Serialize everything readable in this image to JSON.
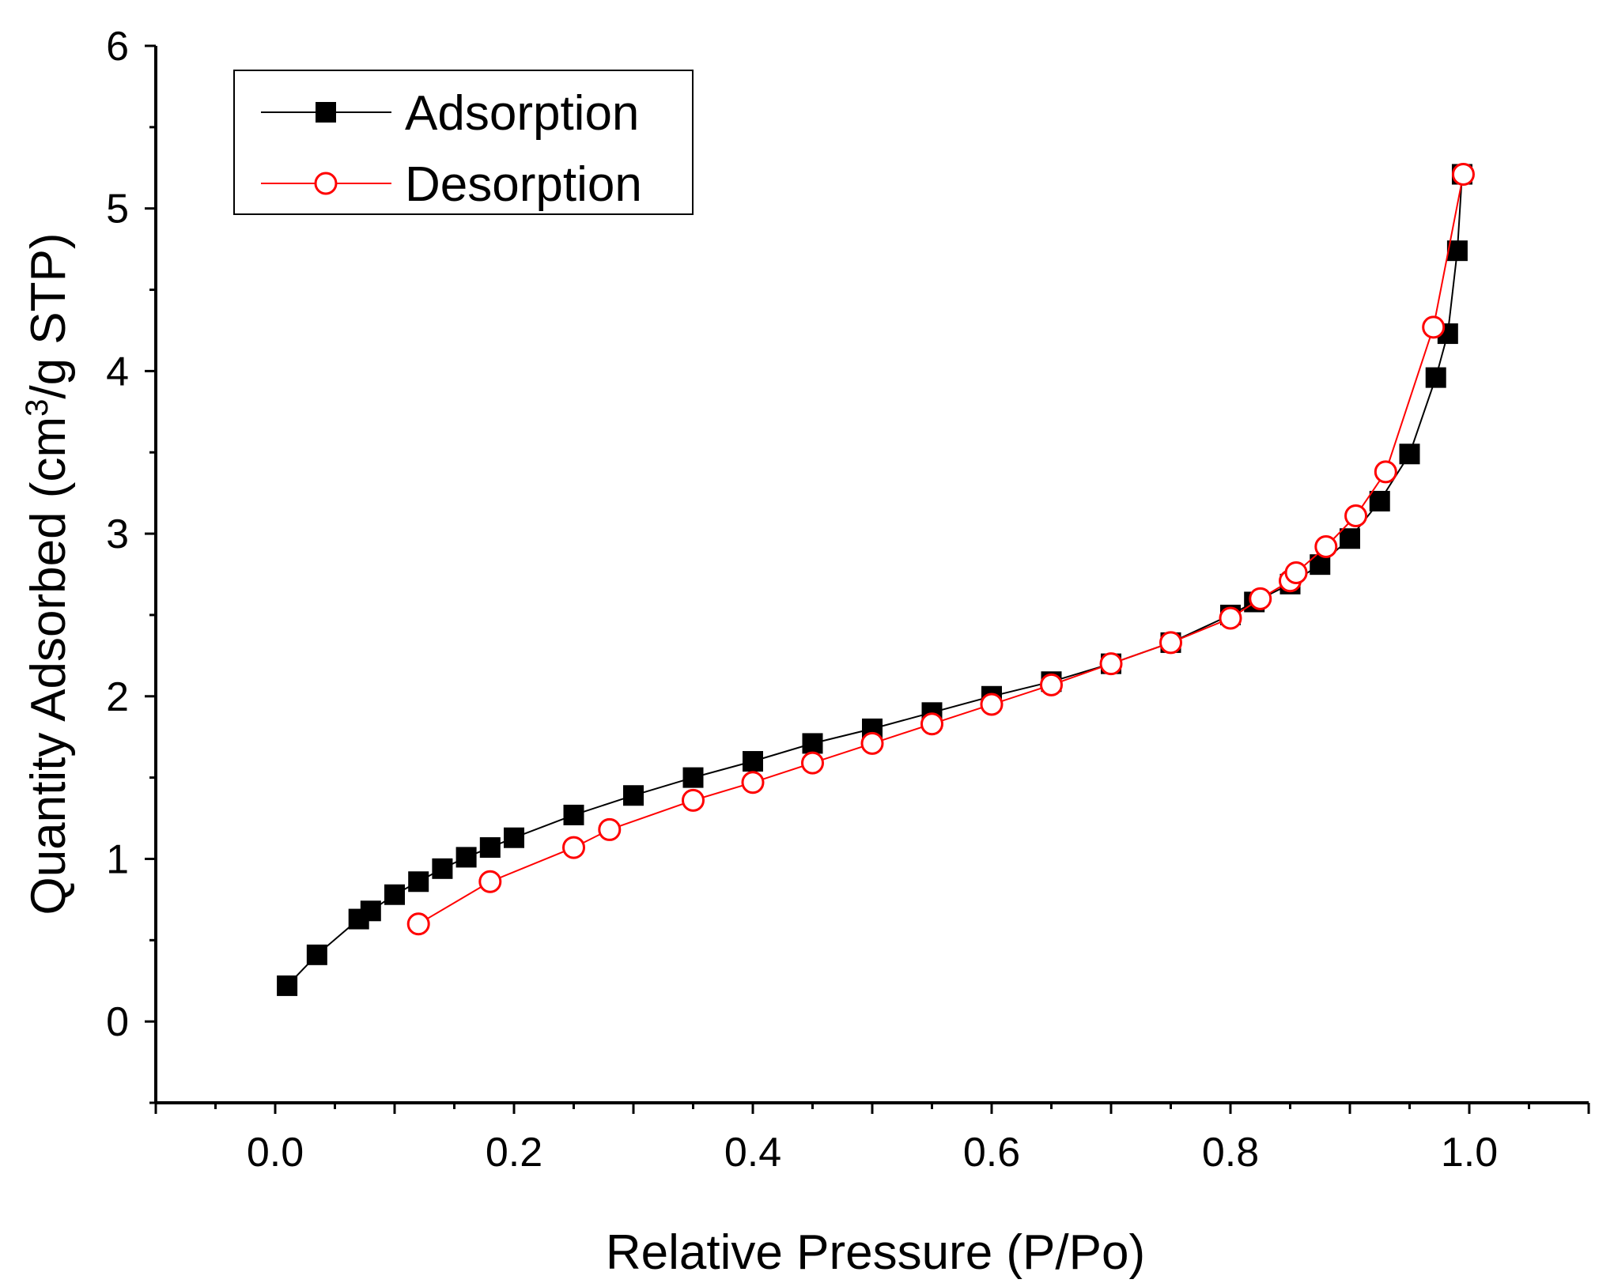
{
  "chart_data": {
    "type": "line",
    "title": "",
    "xlabel": "Relative Pressure (P/Po)",
    "ylabel": "Quantity Adsorbed (cm³/g STP)",
    "ylabel_parts": {
      "pre": "Quantity Adsorbed (cm",
      "sup": "3",
      "post": "/g STP)"
    },
    "xlim": [
      -0.1,
      1.1
    ],
    "ylim": [
      -0.5,
      6
    ],
    "xticks": [
      0.0,
      0.2,
      0.4,
      0.6,
      0.8,
      1.0
    ],
    "xtick_labels": [
      "0.0",
      "0.2",
      "0.4",
      "0.6",
      "0.8",
      "1.0"
    ],
    "yticks": [
      0,
      1,
      2,
      3,
      4,
      5,
      6
    ],
    "ytick_labels": [
      "0",
      "1",
      "2",
      "3",
      "4",
      "5",
      "6"
    ],
    "grid": false,
    "legend": "top-left",
    "series": [
      {
        "name": "Adsorption",
        "color": "#000000",
        "marker": "filled-square",
        "x": [
          0.01,
          0.035,
          0.07,
          0.08,
          0.1,
          0.12,
          0.14,
          0.16,
          0.18,
          0.2,
          0.25,
          0.3,
          0.35,
          0.4,
          0.45,
          0.5,
          0.55,
          0.6,
          0.65,
          0.7,
          0.75,
          0.8,
          0.82,
          0.85,
          0.875,
          0.9,
          0.925,
          0.95,
          0.972,
          0.982,
          0.99,
          0.994
        ],
        "y": [
          0.22,
          0.41,
          0.63,
          0.68,
          0.78,
          0.86,
          0.94,
          1.01,
          1.07,
          1.13,
          1.27,
          1.39,
          1.5,
          1.6,
          1.71,
          1.8,
          1.9,
          2.0,
          2.09,
          2.2,
          2.33,
          2.5,
          2.58,
          2.69,
          2.81,
          2.97,
          3.2,
          3.49,
          3.96,
          4.23,
          4.74,
          5.21
        ]
      },
      {
        "name": "Desorption",
        "color": "#ff0000",
        "marker": "open-circle",
        "x": [
          0.12,
          0.18,
          0.25,
          0.28,
          0.35,
          0.4,
          0.45,
          0.5,
          0.55,
          0.6,
          0.65,
          0.7,
          0.75,
          0.8,
          0.825,
          0.85,
          0.855,
          0.88,
          0.905,
          0.93,
          0.97,
          0.995
        ],
        "y": [
          0.6,
          0.86,
          1.07,
          1.18,
          1.36,
          1.47,
          1.59,
          1.71,
          1.83,
          1.95,
          2.07,
          2.2,
          2.33,
          2.48,
          2.6,
          2.71,
          2.76,
          2.92,
          3.11,
          3.38,
          4.27,
          5.21
        ]
      }
    ]
  }
}
